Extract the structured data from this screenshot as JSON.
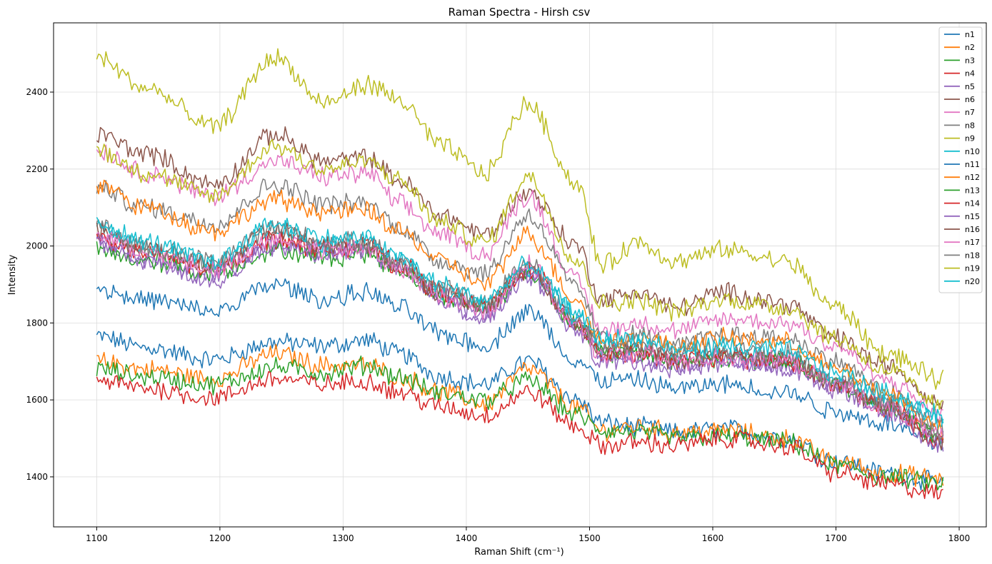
{
  "chart_data": {
    "type": "line",
    "title": "Raman Spectra - Hirsh csv",
    "xlabel": "Raman Shift (cm⁻¹)",
    "ylabel": "Intensity",
    "xlim": [
      1065,
      1380
    ],
    "ylim": [
      1270,
      2580
    ],
    "xlim_real": [
      1065,
      1822
    ],
    "ylim_real": [
      1270,
      2580
    ],
    "x_ticks": [
      1100,
      1200,
      1300,
      1400,
      1500,
      1600,
      1700,
      1800
    ],
    "y_ticks": [
      1400,
      1600,
      1800,
      2000,
      2200,
      2400
    ],
    "x_range": [
      1100,
      1788
    ],
    "grid": true,
    "legend_position": "top-right",
    "key_x": [
      1100,
      1140,
      1195,
      1245,
      1285,
      1320,
      1345,
      1380,
      1415,
      1450,
      1490,
      1510,
      1540,
      1570,
      1610,
      1660,
      1700,
      1740,
      1788
    ],
    "series": [
      {
        "name": "n1",
        "color": "#1f77b4",
        "values": [
          1765,
          1735,
          1705,
          1750,
          1740,
          1755,
          1720,
          1660,
          1640,
          1700,
          1600,
          1540,
          1530,
          1515,
          1525,
          1500,
          1440,
          1410,
          1385
        ]
      },
      {
        "name": "n2",
        "color": "#ff7f0e",
        "values": [
          1700,
          1680,
          1655,
          1720,
          1690,
          1690,
          1660,
          1620,
          1590,
          1680,
          1580,
          1520,
          1530,
          1515,
          1520,
          1500,
          1440,
          1410,
          1395
        ]
      },
      {
        "name": "n3",
        "color": "#2ca02c",
        "values": [
          1680,
          1660,
          1640,
          1685,
          1670,
          1690,
          1660,
          1615,
          1600,
          1650,
          1560,
          1520,
          1515,
          1500,
          1505,
          1490,
          1430,
          1400,
          1380
        ]
      },
      {
        "name": "n4",
        "color": "#d62728",
        "values": [
          1650,
          1630,
          1605,
          1655,
          1640,
          1650,
          1620,
          1580,
          1560,
          1620,
          1530,
          1480,
          1490,
          1480,
          1500,
          1480,
          1410,
          1380,
          1355
        ]
      },
      {
        "name": "n5",
        "color": "#9467bd",
        "values": [
          2020,
          1960,
          1910,
          2010,
          1990,
          1990,
          1950,
          1870,
          1820,
          1920,
          1800,
          1720,
          1710,
          1690,
          1700,
          1690,
          1640,
          1580,
          1500
        ]
      },
      {
        "name": "n6",
        "color": "#8c564b",
        "values": [
          2290,
          2240,
          2160,
          2290,
          2220,
          2230,
          2170,
          2080,
          2030,
          2140,
          2000,
          1860,
          1880,
          1840,
          1880,
          1850,
          1760,
          1690,
          1590
        ]
      },
      {
        "name": "n7",
        "color": "#e377c2",
        "values": [
          2250,
          2190,
          2130,
          2220,
          2180,
          2190,
          2110,
          2030,
          1980,
          2130,
          1910,
          1780,
          1800,
          1780,
          1810,
          1800,
          1740,
          1650,
          1560
        ]
      },
      {
        "name": "n8",
        "color": "#7f7f7f",
        "values": [
          2150,
          2100,
          2060,
          2160,
          2110,
          2110,
          2050,
          1960,
          1930,
          2080,
          1890,
          1760,
          1770,
          1740,
          1770,
          1760,
          1700,
          1620,
          1530
        ]
      },
      {
        "name": "n9",
        "color": "#bcbd22",
        "values": [
          2490,
          2410,
          2310,
          2490,
          2370,
          2420,
          2380,
          2260,
          2190,
          2370,
          2160,
          1950,
          2010,
          1960,
          1990,
          1960,
          1840,
          1720,
          1650
        ]
      },
      {
        "name": "n10",
        "color": "#17becf",
        "values": [
          2050,
          2000,
          1950,
          2050,
          2000,
          2010,
          1960,
          1880,
          1850,
          1940,
          1830,
          1740,
          1740,
          1710,
          1720,
          1710,
          1650,
          1600,
          1550
        ]
      },
      {
        "name": "n11",
        "color": "#1f77b4",
        "values": [
          1890,
          1860,
          1830,
          1900,
          1860,
          1880,
          1840,
          1770,
          1740,
          1830,
          1700,
          1650,
          1650,
          1630,
          1640,
          1620,
          1570,
          1540,
          1480
        ]
      },
      {
        "name": "n12",
        "color": "#ff7f0e",
        "values": [
          2160,
          2100,
          2040,
          2120,
          2090,
          2090,
          2040,
          1960,
          1900,
          2030,
          1860,
          1750,
          1760,
          1740,
          1760,
          1750,
          1680,
          1620,
          1520
        ]
      },
      {
        "name": "n13",
        "color": "#2ca02c",
        "values": [
          1985,
          1960,
          1930,
          1990,
          1970,
          1980,
          1940,
          1870,
          1840,
          1930,
          1800,
          1720,
          1720,
          1700,
          1710,
          1700,
          1640,
          1580,
          1500
        ]
      },
      {
        "name": "n14",
        "color": "#d62728",
        "values": [
          2020,
          1980,
          1940,
          2020,
          1990,
          2000,
          1950,
          1880,
          1840,
          1940,
          1800,
          1720,
          1720,
          1700,
          1710,
          1700,
          1640,
          1580,
          1490
        ]
      },
      {
        "name": "n15",
        "color": "#9467bd",
        "values": [
          2010,
          1960,
          1920,
          2000,
          1980,
          1990,
          1940,
          1860,
          1810,
          1930,
          1780,
          1700,
          1700,
          1680,
          1700,
          1680,
          1630,
          1570,
          1480
        ]
      },
      {
        "name": "n16",
        "color": "#8c564b",
        "values": [
          2040,
          1990,
          1950,
          2040,
          2000,
          2000,
          1950,
          1880,
          1840,
          1940,
          1800,
          1730,
          1730,
          1700,
          1720,
          1700,
          1640,
          1580,
          1490
        ]
      },
      {
        "name": "n17",
        "color": "#e377c2",
        "values": [
          2030,
          1980,
          1940,
          2020,
          1990,
          1990,
          1940,
          1870,
          1830,
          1950,
          1790,
          1720,
          1720,
          1700,
          1710,
          1700,
          1640,
          1580,
          1500
        ]
      },
      {
        "name": "n18",
        "color": "#7f7f7f",
        "values": [
          2050,
          2000,
          1960,
          2050,
          2010,
          2010,
          1960,
          1890,
          1850,
          1960,
          1810,
          1740,
          1740,
          1720,
          1730,
          1720,
          1650,
          1600,
          1510
        ]
      },
      {
        "name": "n19",
        "color": "#bcbd22",
        "values": [
          2250,
          2190,
          2130,
          2260,
          2200,
          2220,
          2170,
          2060,
          2010,
          2180,
          1960,
          1850,
          1860,
          1830,
          1860,
          1840,
          1760,
          1680,
          1580
        ]
      },
      {
        "name": "n20",
        "color": "#17becf",
        "values": [
          2060,
          2010,
          1960,
          2060,
          2020,
          2020,
          1970,
          1900,
          1860,
          1950,
          1820,
          1760,
          1760,
          1730,
          1740,
          1730,
          1670,
          1620,
          1560
        ]
      }
    ]
  }
}
